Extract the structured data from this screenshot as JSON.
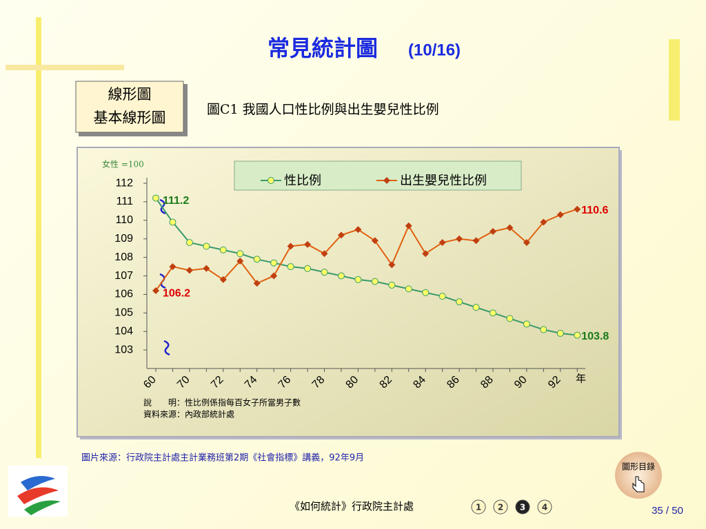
{
  "header": {
    "title": "常見統計圖",
    "part": "(10/16)"
  },
  "badge": {
    "lines": [
      "線形圖",
      "基本線形圖"
    ]
  },
  "chart_data": {
    "type": "line",
    "title": "圖C1  我國人口性比例與出生嬰兒性比例",
    "y_unit": "女性 =100",
    "x_label": "年",
    "categories": [
      "60",
      null,
      "70",
      null,
      "72",
      null,
      "74",
      null,
      "76",
      null,
      "78",
      null,
      "80",
      null,
      "82",
      null,
      "84",
      null,
      "86",
      null,
      "88",
      null,
      "90",
      null,
      "92",
      null
    ],
    "ylim": [
      102,
      112.3
    ],
    "yticks": [
      103,
      104,
      105,
      106,
      107,
      108,
      109,
      110,
      111,
      112
    ],
    "legend": "top",
    "series": [
      {
        "name": "性比例",
        "color": "#3a9a6a",
        "marker": "circle",
        "marker_color": "#ffff66",
        "values": [
          111.2,
          109.9,
          108.8,
          108.6,
          108.4,
          108.2,
          107.9,
          107.7,
          107.5,
          107.4,
          107.2,
          107.0,
          106.8,
          106.7,
          106.5,
          106.3,
          106.1,
          105.9,
          105.6,
          105.3,
          105.0,
          104.7,
          104.4,
          104.1,
          103.9,
          103.8
        ],
        "value_labels": [
          "111.2",
          null,
          null,
          null,
          null,
          null,
          null,
          null,
          null,
          null,
          null,
          null,
          null,
          null,
          null,
          null,
          null,
          null,
          null,
          null,
          null,
          null,
          null,
          null,
          null,
          "103.8"
        ],
        "label_color": "#1a7a1a"
      },
      {
        "name": "出生嬰兒性比例",
        "color": "#e06010",
        "marker": "diamond",
        "marker_color": "#c04010",
        "values": [
          106.2,
          107.5,
          107.3,
          107.4,
          106.8,
          107.8,
          106.6,
          107.0,
          108.6,
          108.7,
          108.2,
          109.2,
          109.5,
          108.9,
          107.6,
          109.7,
          108.2,
          108.8,
          109.0,
          108.9,
          109.4,
          109.6,
          108.8,
          109.9,
          110.3,
          110.6
        ],
        "value_labels": [
          "106.2",
          null,
          null,
          null,
          null,
          null,
          null,
          null,
          null,
          null,
          null,
          null,
          null,
          null,
          null,
          null,
          null,
          null,
          null,
          null,
          null,
          null,
          null,
          null,
          null,
          "110.6"
        ],
        "label_color": "#dd0000"
      }
    ],
    "notes": [
      "說　　明：性比例係指每百女子所當男子數",
      "資料來源：內政部統計處"
    ]
  },
  "source": "圖片來源：行政院主計處主計業務班第2期《社會指標》講義，92年9月",
  "toc_button": "圖形目錄",
  "footer": {
    "text": "《如何統計》行政院主計處",
    "pages": [
      "1",
      "2",
      "3",
      "4"
    ],
    "current": "3",
    "page_number": "35 / 50"
  }
}
